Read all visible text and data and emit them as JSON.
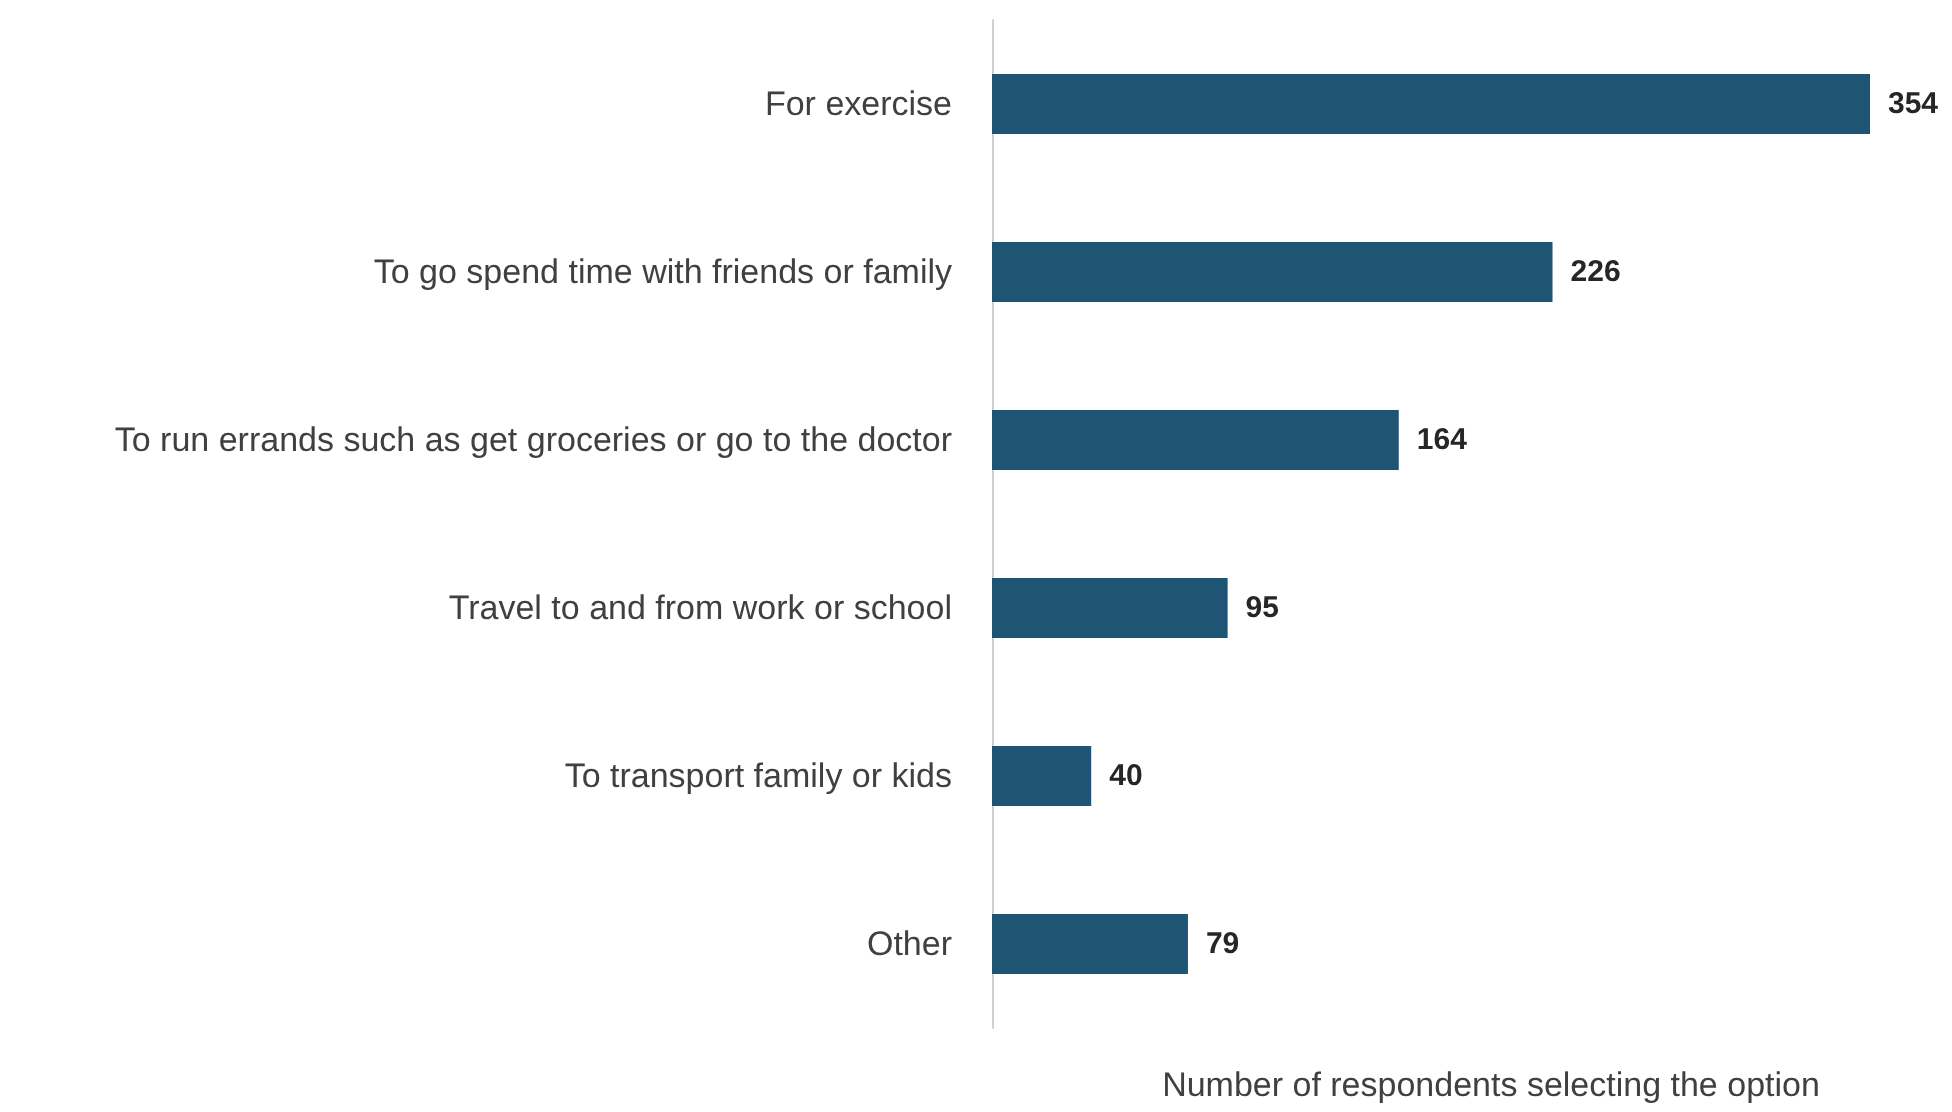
{
  "chart_data": {
    "type": "bar",
    "orientation": "horizontal",
    "categories": [
      "For exercise",
      "To go spend time with friends or family",
      "To run errands such as get groceries or go to the doctor",
      "Travel to and from work or school",
      "To transport family or kids",
      "Other"
    ],
    "values": [
      354,
      226,
      164,
      95,
      40,
      79
    ],
    "color": "#1f5475",
    "xlabel": "Number of respondents selecting the option",
    "data_labels": true
  }
}
